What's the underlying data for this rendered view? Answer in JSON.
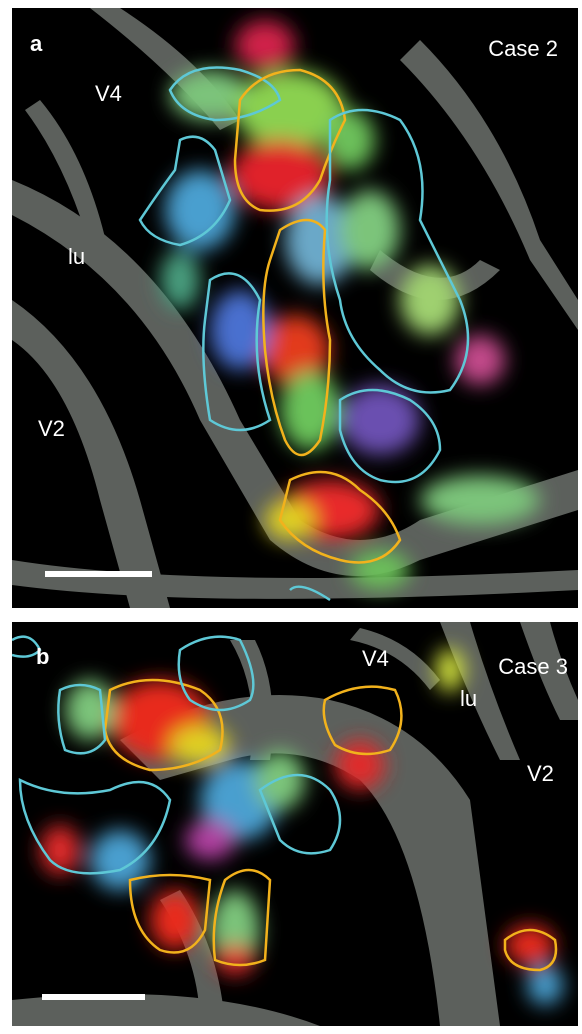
{
  "panels": [
    {
      "label": "a",
      "case": "Case 2",
      "areas": [
        "V4",
        "lu",
        "V2"
      ]
    },
    {
      "label": "b",
      "case": "Case 3",
      "areas": [
        "V4",
        "lu",
        "V2"
      ]
    }
  ]
}
